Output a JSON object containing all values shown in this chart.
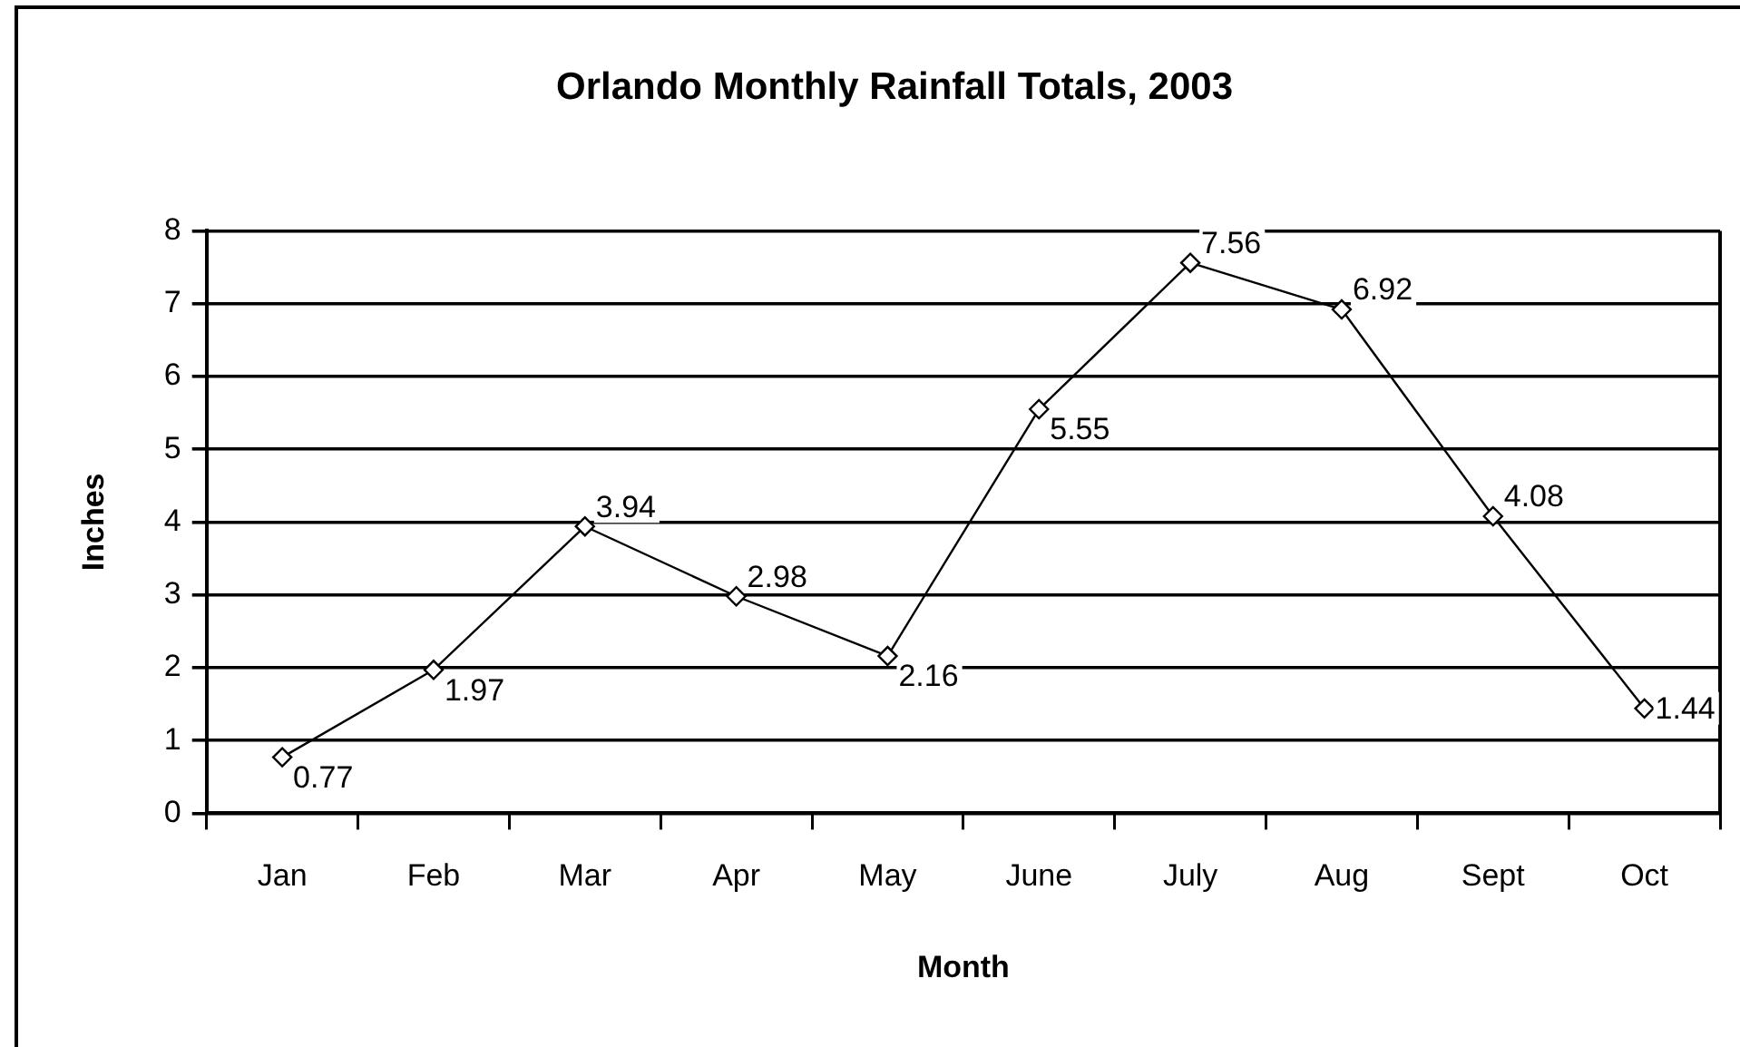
{
  "chart_data": {
    "type": "line",
    "title": "Orlando Monthly Rainfall Totals, 2003",
    "xlabel": "Month",
    "ylabel": "Inches",
    "categories": [
      "Jan",
      "Feb",
      "Mar",
      "Apr",
      "May",
      "June",
      "July",
      "Aug",
      "Sept",
      "Oct"
    ],
    "series": [
      {
        "color": "#000000",
        "values": [
          0.77,
          1.97,
          3.94,
          2.98,
          2.16,
          5.55,
          7.56,
          6.92,
          4.08,
          1.44
        ]
      }
    ],
    "ylim": [
      0,
      8
    ],
    "yticks": [
      0,
      1,
      2,
      3,
      4,
      5,
      6,
      7,
      8
    ],
    "grid": "y",
    "marker": "diamond",
    "line_style": "solid",
    "data_labels": true
  }
}
